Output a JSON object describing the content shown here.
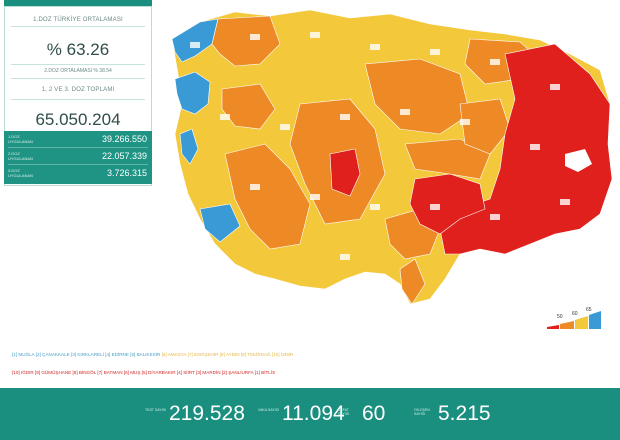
{
  "stats": {
    "first_dose_label": "1.DOZ TÜRKİYE ORTALAMASI",
    "first_dose_value": "% 63.26",
    "second_dose_label": "2.DOZ ORTALAMASI % 38.54",
    "total_label": "1, 2 VE 3. DOZ TOPLAMI",
    "total_value": "65.050.204",
    "doses": [
      {
        "label": "1.DOZ UYGULANAN",
        "value": "39.266.550"
      },
      {
        "label": "2.DOZ UYGULANAN",
        "value": "22.057.339"
      },
      {
        "label": "3.DOZ UYGULANAN",
        "value": "3.726.315"
      }
    ]
  },
  "legend": {
    "values": [
      "50",
      "60",
      "65"
    ],
    "colors": [
      "#e0201c",
      "#ee8a26",
      "#f3c83a",
      "#3a9ad6"
    ]
  },
  "province_lists": {
    "low_blue": "[1] MUĞLA   [2] ÇANAKKALE   [3] KIRKLARELİ   [4] EDİRNE   [5] BALIKESİR",
    "low_yellow": "   [6] AMASYA   [7] ESKİŞEHİR   [8] AYDIN   [9] TEKİRDAĞ   [10] İZMİR",
    "high": "[10] IĞDIR   [9] GÜMÜŞHANE   [8] BİNGÖL   [7] BATMAN   [6] MUŞ   [5] DİYARBAKIR   [4] SİİRT   [3] MARDİN   [2] ŞANLIURFA   [1] BİTLİS"
  },
  "bottom": [
    {
      "label": "TEST SAYISI",
      "value": "219.528"
    },
    {
      "label": "VAKA SAYISI",
      "value": "11.094"
    },
    {
      "label": "VEFAT SAYISI",
      "value": "60"
    },
    {
      "label": "İYILEŞEN SAYISI",
      "value": "5.215"
    }
  ],
  "map": {
    "colors": {
      "blue": "#3a9ad6",
      "yellow": "#f3c83a",
      "orange": "#ee8a26",
      "red": "#e0201c"
    }
  }
}
